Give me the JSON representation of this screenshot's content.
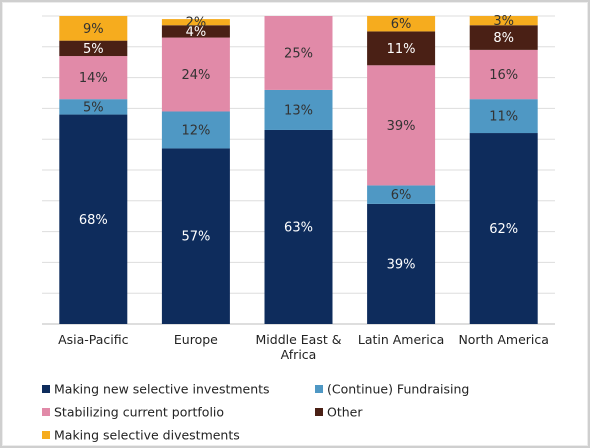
{
  "chart_data": {
    "type": "bar",
    "stacked": true,
    "percent": true,
    "categories": [
      "Asia-Pacific",
      "Europe",
      "Middle East & Africa",
      "Latin America",
      "North America"
    ],
    "series": [
      {
        "name": "Making new selective investments",
        "color": "#0e2c5c",
        "values": [
          68,
          57,
          63,
          39,
          62
        ],
        "labels": [
          "68%",
          "57%",
          "63%",
          "39%",
          "62%"
        ]
      },
      {
        "name": "(Continue) Fundraising",
        "color": "#4f98c4",
        "values": [
          5,
          12,
          13,
          6,
          11
        ],
        "labels": [
          "5%",
          "12%",
          "13%",
          "6%",
          "11%"
        ]
      },
      {
        "name": "Stabilizing current portfolio",
        "color": "#e18aa8",
        "values": [
          14,
          24,
          25,
          39,
          16
        ],
        "labels": [
          "14%",
          "24%",
          "25%",
          "39%",
          "16%"
        ]
      },
      {
        "name": "Other",
        "color": "#4a2015",
        "values": [
          5,
          4,
          0,
          11,
          8
        ],
        "labels": [
          "5%",
          "4%",
          "",
          "11%",
          "8%"
        ]
      },
      {
        "name": "Making selective divestments",
        "color": "#f6ac1e",
        "values": [
          9,
          2,
          0,
          6,
          3
        ],
        "labels": [
          "9%",
          "2%",
          "",
          "6%",
          "3%"
        ]
      }
    ],
    "ylim": [
      0,
      100
    ],
    "grid": true,
    "legend_position": "bottom",
    "label_colors": [
      "#ffffff",
      "#333333",
      "#333333",
      "#ffffff",
      "#333333"
    ]
  }
}
